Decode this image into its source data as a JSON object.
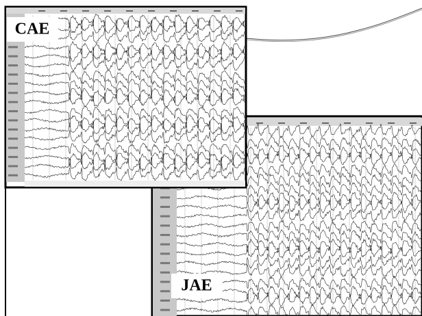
{
  "panels": [
    {
      "label": "CAE"
    },
    {
      "label": "JAE"
    }
  ]
}
